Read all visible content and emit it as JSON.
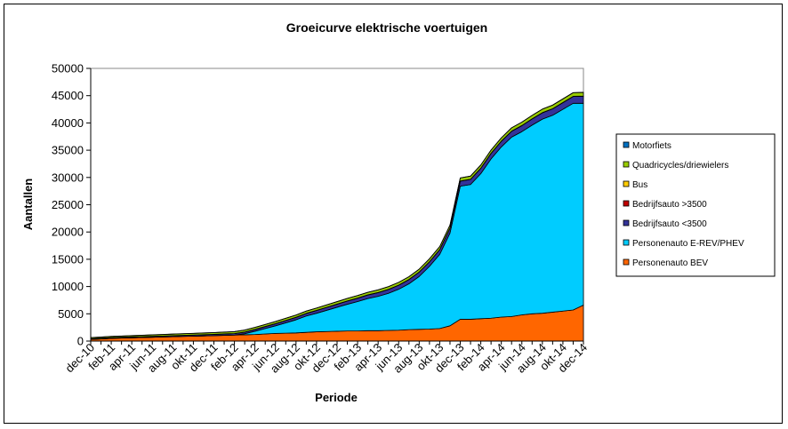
{
  "chart_data": {
    "type": "area",
    "stacked": true,
    "title": "Groeicurve elektrische voertuigen",
    "xlabel": "Periode",
    "ylabel": "Aantallen",
    "ylim": [
      0,
      50000
    ],
    "yticks": [
      0,
      5000,
      10000,
      15000,
      20000,
      25000,
      30000,
      35000,
      40000,
      45000,
      50000
    ],
    "grid": false,
    "legend_position": "right",
    "x": [
      "dec-10",
      "jan-11",
      "feb-11",
      "mrt-11",
      "apr-11",
      "mei-11",
      "jun-11",
      "jul-11",
      "aug-11",
      "sep-11",
      "okt-11",
      "nov-11",
      "dec-11",
      "jan-12",
      "feb-12",
      "mrt-12",
      "apr-12",
      "mei-12",
      "jun-12",
      "jul-12",
      "aug-12",
      "sep-12",
      "okt-12",
      "nov-12",
      "dec-12",
      "jan-13",
      "feb-13",
      "mrt-13",
      "apr-13",
      "mei-13",
      "jun-13",
      "jul-13",
      "aug-13",
      "sep-13",
      "okt-13",
      "nov-13",
      "dec-13",
      "jan-14",
      "feb-14",
      "mrt-14",
      "apr-14",
      "mei-14",
      "jun-14",
      "jul-14",
      "aug-14",
      "sep-14",
      "okt-14",
      "nov-14",
      "dec-14"
    ],
    "xtick_labels": [
      "dec-10",
      "feb-11",
      "apr-11",
      "jun-11",
      "aug-11",
      "okt-11",
      "dec-11",
      "feb-12",
      "apr-12",
      "jun-12",
      "aug-12",
      "okt-12",
      "dec-12",
      "feb-13",
      "apr-13",
      "jun-13",
      "aug-13",
      "okt-13",
      "dec-13",
      "feb-14",
      "apr-14",
      "jun-14",
      "aug-14",
      "okt-14",
      "dec-14"
    ],
    "series": [
      {
        "name": "Personenauto BEV",
        "color": "#FF6600",
        "values": [
          300,
          400,
          500,
          550,
          600,
          650,
          700,
          750,
          800,
          850,
          900,
          950,
          1000,
          1050,
          1100,
          1150,
          1200,
          1300,
          1400,
          1450,
          1500,
          1600,
          1700,
          1750,
          1800,
          1850,
          1850,
          1900,
          1900,
          1950,
          2000,
          2100,
          2150,
          2200,
          2300,
          2800,
          4000,
          4000,
          4100,
          4200,
          4400,
          4500,
          4800,
          5000,
          5100,
          5300,
          5500,
          5700,
          6600
        ]
      },
      {
        "name": "Personenauto E-REV/PHEV",
        "color": "#00CCFF",
        "values": [
          0,
          0,
          0,
          0,
          0,
          0,
          0,
          0,
          0,
          0,
          0,
          0,
          0,
          0,
          0,
          200,
          600,
          1000,
          1400,
          1900,
          2400,
          3000,
          3400,
          3900,
          4400,
          4900,
          5400,
          5900,
          6300,
          6800,
          7500,
          8400,
          9700,
          11500,
          13600,
          17000,
          24400,
          24700,
          26600,
          29200,
          31200,
          32900,
          33600,
          34600,
          35600,
          36100,
          37000,
          37900,
          37000
        ]
      },
      {
        "name": "Bedrijfsauto <3500",
        "color": "#333399",
        "values": [
          100,
          100,
          120,
          130,
          140,
          150,
          160,
          170,
          180,
          190,
          200,
          210,
          220,
          240,
          260,
          290,
          320,
          350,
          380,
          410,
          440,
          470,
          500,
          530,
          560,
          590,
          620,
          650,
          680,
          710,
          740,
          770,
          800,
          830,
          860,
          890,
          920,
          950,
          980,
          1010,
          1040,
          1070,
          1100,
          1130,
          1160,
          1190,
          1220,
          1250,
          1290
        ]
      },
      {
        "name": "Bedrijfsauto >3500",
        "color": "#C00000",
        "values": [
          10,
          10,
          10,
          10,
          10,
          10,
          10,
          10,
          10,
          10,
          10,
          10,
          10,
          10,
          10,
          10,
          10,
          10,
          10,
          10,
          10,
          10,
          10,
          10,
          10,
          10,
          10,
          10,
          10,
          10,
          10,
          10,
          10,
          10,
          10,
          10,
          10,
          10,
          10,
          10,
          10,
          10,
          10,
          10,
          10,
          10,
          10,
          10,
          10
        ]
      },
      {
        "name": "Bus",
        "color": "#FFCC00",
        "values": [
          10,
          10,
          10,
          10,
          10,
          10,
          10,
          10,
          10,
          10,
          10,
          10,
          10,
          20,
          20,
          20,
          20,
          20,
          20,
          20,
          20,
          20,
          20,
          20,
          20,
          20,
          20,
          20,
          20,
          20,
          20,
          20,
          20,
          20,
          20,
          20,
          20,
          20,
          20,
          20,
          20,
          20,
          20,
          20,
          20,
          20,
          20,
          20,
          20
        ]
      },
      {
        "name": "Quadricycles/driewielers",
        "color": "#99CC00",
        "values": [
          200,
          200,
          210,
          220,
          230,
          240,
          250,
          260,
          270,
          280,
          290,
          300,
          310,
          320,
          330,
          340,
          350,
          360,
          370,
          380,
          390,
          400,
          410,
          420,
          430,
          440,
          450,
          460,
          470,
          480,
          490,
          500,
          510,
          520,
          530,
          540,
          550,
          560,
          570,
          580,
          590,
          600,
          610,
          620,
          630,
          640,
          650,
          660,
          670
        ]
      },
      {
        "name": "Motorfiets",
        "color": "#0070C0",
        "values": [
          20,
          20,
          20,
          20,
          20,
          20,
          20,
          20,
          20,
          20,
          20,
          20,
          20,
          20,
          20,
          20,
          20,
          20,
          20,
          20,
          20,
          20,
          20,
          20,
          20,
          20,
          20,
          20,
          20,
          20,
          20,
          20,
          20,
          20,
          20,
          20,
          20,
          20,
          20,
          20,
          20,
          20,
          20,
          20,
          20,
          20,
          20,
          20,
          20
        ]
      }
    ],
    "legend_order": [
      "Motorfiets",
      "Quadricycles/driewielers",
      "Bus",
      "Bedrijfsauto >3500",
      "Bedrijfsauto <3500",
      "Personenauto E-REV/PHEV",
      "Personenauto BEV"
    ]
  }
}
